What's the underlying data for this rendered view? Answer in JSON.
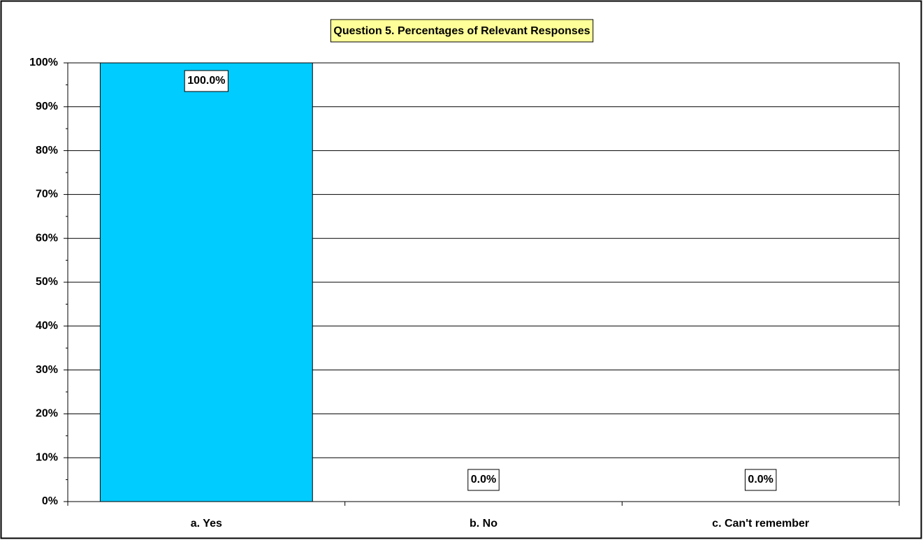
{
  "chart_data": {
    "type": "bar",
    "title": "Question 5. Percentages of Relevant Responses",
    "categories": [
      "a. Yes",
      "b. No",
      "c. Can't remember"
    ],
    "values": [
      100,
      0,
      0
    ],
    "value_labels": [
      "100.0%",
      "0.0%",
      "0.0%"
    ],
    "color": "#00ccff",
    "ylim": [
      0,
      100
    ],
    "yticks": [
      {
        "value": 0,
        "label": "0%"
      },
      {
        "value": 10,
        "label": "10%"
      },
      {
        "value": 20,
        "label": "20%"
      },
      {
        "value": 30,
        "label": "30%"
      },
      {
        "value": 40,
        "label": "40%"
      },
      {
        "value": 50,
        "label": "50%"
      },
      {
        "value": 60,
        "label": "60%"
      },
      {
        "value": 70,
        "label": "70%"
      },
      {
        "value": 80,
        "label": "80%"
      },
      {
        "value": 90,
        "label": "90%"
      },
      {
        "value": 100,
        "label": "100%"
      }
    ],
    "grid": true
  }
}
